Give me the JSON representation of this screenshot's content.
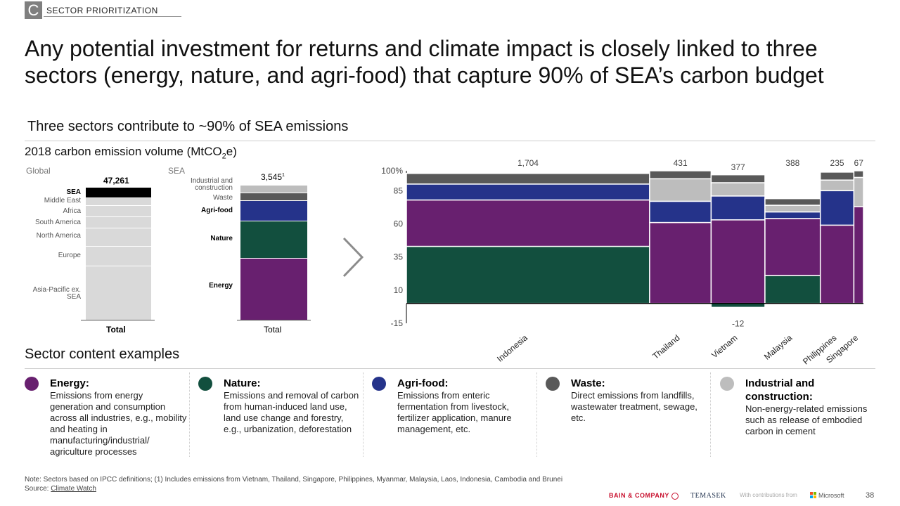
{
  "section": {
    "letter": "C",
    "label": "SECTOR PRIORITIZATION"
  },
  "headline": "Any potential investment for returns and climate impact is closely linked to three sectors (energy, nature, and agri-food) that capture 90% of SEA’s carbon budget",
  "subtitle": "Three sectors contribute to ~90% of SEA emissions",
  "chart_title_prefix": "2018 carbon emission volume (MtCO",
  "chart_title_sub": "2",
  "chart_title_suffix": "e)",
  "colors": {
    "energy": "#68206f",
    "nature": "#124f3e",
    "agrifood": "#25338a",
    "waste": "#595959",
    "industrial": "#bdbdbd",
    "sea": "#000000",
    "region": "#d9d9d9"
  },
  "global_bar": {
    "header": "Global",
    "total_label": "47,261",
    "axis_label": "Total",
    "segments": [
      "SEA",
      "Middle East",
      "Africa",
      "South America",
      "North America",
      "Europe",
      "Asia-Pacific ex. SEA"
    ]
  },
  "sea_bar": {
    "header": "SEA",
    "total_label": "3,545",
    "total_sup": "1",
    "axis_label": "Total",
    "segments": [
      "Industrial and construction",
      "Waste",
      "Agri-food",
      "Nature",
      "Energy"
    ]
  },
  "chart_data": {
    "type": "bar",
    "subtype": "marimekko",
    "ylabel": "",
    "yticks": [
      "100%",
      "85",
      "60",
      "35",
      "10",
      "-15"
    ],
    "ylim": [
      -15,
      100
    ],
    "categories": [
      "Indonesia",
      "Thailand",
      "Vietnam",
      "Malaysia",
      "Philippines",
      "Singapore"
    ],
    "widths": [
      1704,
      431,
      377,
      388,
      235,
      67
    ],
    "width_labels": [
      "1,704",
      "431",
      "377",
      "388",
      "235",
      "67"
    ],
    "annotations": [
      "-12"
    ],
    "series": [
      {
        "name": "Nature",
        "values": [
          43,
          0,
          -3,
          21,
          0,
          0
        ]
      },
      {
        "name": "Energy",
        "values": [
          35,
          61,
          63,
          43,
          59,
          73
        ]
      },
      {
        "name": "Agri-food",
        "values": [
          12,
          16,
          18,
          5,
          26,
          0
        ]
      },
      {
        "name": "Industrial and construction",
        "values": [
          0,
          17,
          10,
          5,
          8,
          22
        ]
      },
      {
        "name": "Waste",
        "values": [
          8,
          6,
          6,
          5,
          6,
          5
        ]
      }
    ]
  },
  "examples_title": "Sector content examples",
  "cards": [
    {
      "title": "Energy:",
      "desc": "Emissions from energy generation and consumption across all industries, e.g., mobility and heating in manufacturing/industrial/ agriculture processes"
    },
    {
      "title": "Nature:",
      "desc": "Emissions and removal of carbon from human-induced land use, land use change and forestry, e.g., urbanization, deforestation"
    },
    {
      "title": "Agri-food:",
      "desc": "Emissions from enteric fermentation from livestock, fertilizer application, manure management, etc."
    },
    {
      "title": "Waste:",
      "desc": "Direct emissions from landfills, wastewater treatment, sewage, etc."
    },
    {
      "title": "Industrial and construction:",
      "desc": "Non-energy-related emissions such as release of embodied carbon in cement"
    }
  ],
  "note": "Note: Sectors based on IPCC definitions; (1) Includes emissions from Vietnam, Thailand, Singapore, Philippines, Myanmar, Malaysia, Laos, Indonesia, Cambodia and Brunei",
  "source_prefix": "Source: ",
  "source_link": "Climate Watch",
  "footer": {
    "bain": "BAIN & COMPANY",
    "temasek": "TEMASEK",
    "contrib": "With contributions from",
    "microsoft": "Microsoft",
    "page": "38"
  }
}
